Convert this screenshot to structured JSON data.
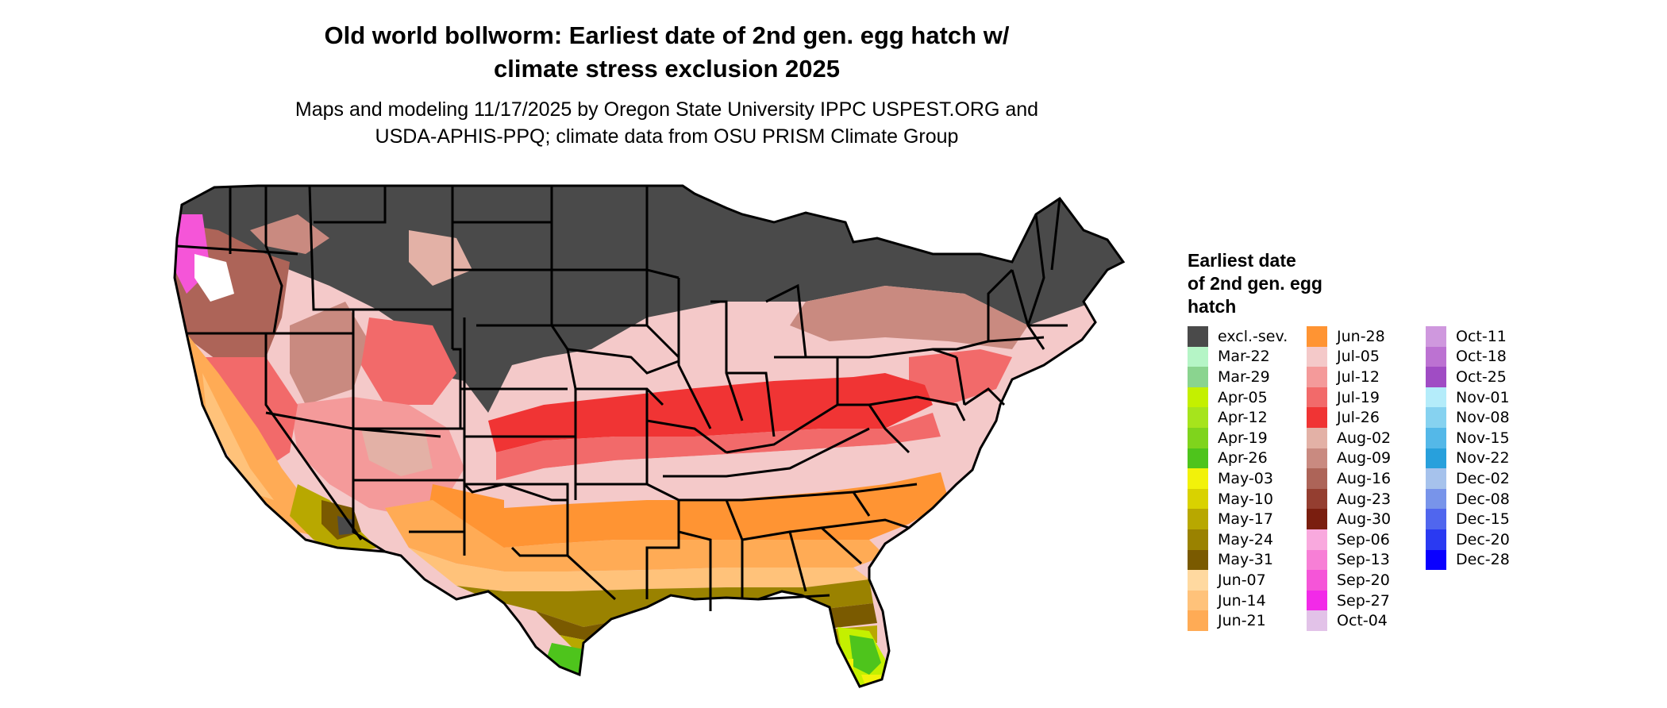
{
  "title": {
    "line1": "Old world bollworm: Earliest date of 2nd gen. egg hatch w/",
    "line2": "climate stress exclusion 2025"
  },
  "subtitle": {
    "line1": "Maps and modeling 11/17/2025 by Oregon State University IPPC USPEST.ORG and",
    "line2": "USDA-APHIS-PPQ; climate data from OSU PRISM Climate Group"
  },
  "legend": {
    "title_lines": [
      "Earliest date",
      "of 2nd gen. egg",
      "hatch"
    ],
    "columns": [
      [
        {
          "label": "excl.-sev.",
          "color": "#4a4a4a"
        },
        {
          "label": "Mar-22",
          "color": "#b5f5c6"
        },
        {
          "label": "Mar-29",
          "color": "#8ad48f"
        },
        {
          "label": "Apr-05",
          "color": "#c4f000"
        },
        {
          "label": "Apr-12",
          "color": "#a6e41c"
        },
        {
          "label": "Apr-19",
          "color": "#7fd41c"
        },
        {
          "label": "Apr-26",
          "color": "#4ec41c"
        },
        {
          "label": "May-03",
          "color": "#f2f20a"
        },
        {
          "label": "May-10",
          "color": "#d9d200"
        },
        {
          "label": "May-17",
          "color": "#b8a800"
        },
        {
          "label": "May-24",
          "color": "#9a8200"
        },
        {
          "label": "May-31",
          "color": "#7a5a00"
        },
        {
          "label": "Jun-07",
          "color": "#ffd9a0"
        },
        {
          "label": "Jun-14",
          "color": "#ffc27a"
        },
        {
          "label": "Jun-21",
          "color": "#ffab55"
        }
      ],
      [
        {
          "label": "Jun-28",
          "color": "#ff9433"
        },
        {
          "label": "Jul-05",
          "color": "#f4c9c9"
        },
        {
          "label": "Jul-12",
          "color": "#f49a9a"
        },
        {
          "label": "Jul-19",
          "color": "#f26a6a"
        },
        {
          "label": "Jul-26",
          "color": "#f03434"
        },
        {
          "label": "Aug-02",
          "color": "#e3b1a6"
        },
        {
          "label": "Aug-09",
          "color": "#c98a80"
        },
        {
          "label": "Aug-16",
          "color": "#ad6458"
        },
        {
          "label": "Aug-23",
          "color": "#943e30"
        },
        {
          "label": "Aug-30",
          "color": "#7a1e0f"
        },
        {
          "label": "Sep-06",
          "color": "#f9a9de"
        },
        {
          "label": "Sep-13",
          "color": "#f77fd6"
        },
        {
          "label": "Sep-20",
          "color": "#f555d8"
        },
        {
          "label": "Sep-27",
          "color": "#f22ae8"
        },
        {
          "label": "Oct-04",
          "color": "#e2c2e8"
        }
      ],
      [
        {
          "label": "Oct-11",
          "color": "#cf98de"
        },
        {
          "label": "Oct-18",
          "color": "#bc72d2"
        },
        {
          "label": "Oct-25",
          "color": "#a04cc4"
        },
        {
          "label": "Nov-01",
          "color": "#b4ecfa"
        },
        {
          "label": "Nov-08",
          "color": "#86d2f0"
        },
        {
          "label": "Nov-15",
          "color": "#54b8e8"
        },
        {
          "label": "Nov-22",
          "color": "#28a0dc"
        },
        {
          "label": "Dec-02",
          "color": "#a6c2ec"
        },
        {
          "label": "Dec-08",
          "color": "#7894ea"
        },
        {
          "label": "Dec-15",
          "color": "#5066ee"
        },
        {
          "label": "Dec-20",
          "color": "#2a3af2"
        },
        {
          "label": "Dec-28",
          "color": "#0a00ff"
        }
      ]
    ]
  }
}
